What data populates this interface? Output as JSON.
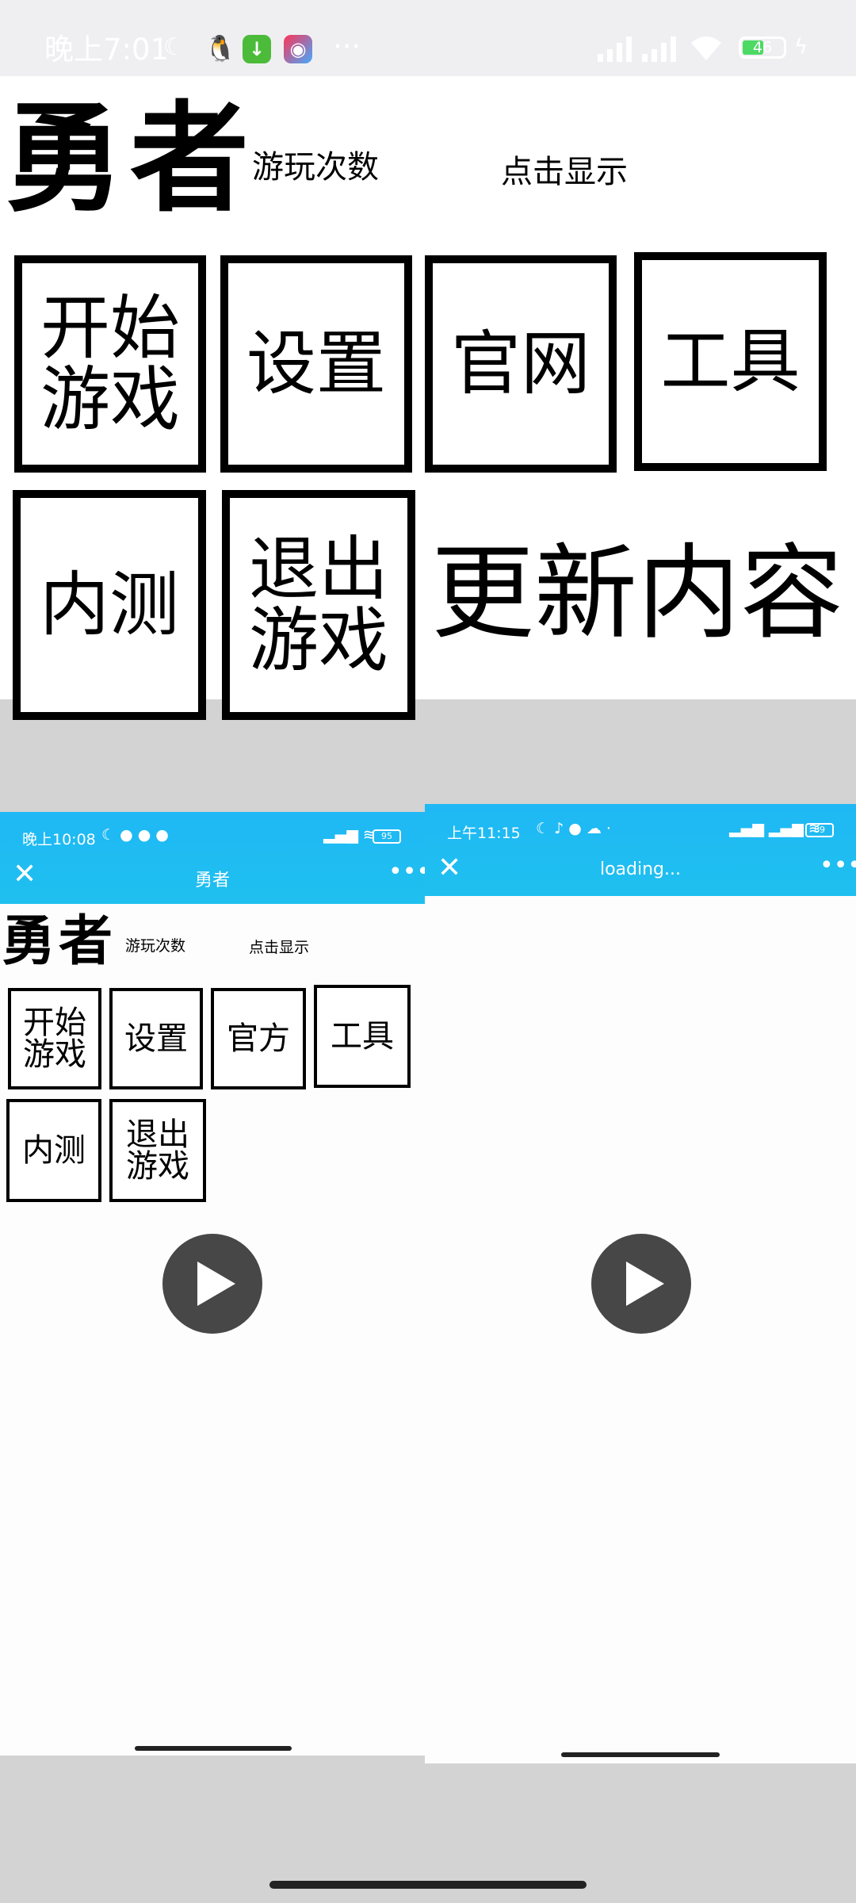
{
  "status_bar": {
    "time": "晚上7:01",
    "battery": "46",
    "more": "···"
  },
  "main": {
    "title": "勇者",
    "play_count_label": "游玩次数",
    "click_show_label": "点击显示",
    "buttons": [
      {
        "line1": "开始",
        "line2": "游戏"
      },
      {
        "line1": "设置"
      },
      {
        "line1": "官网"
      },
      {
        "line1": "工具"
      },
      {
        "line1": "内测"
      },
      {
        "line1": "退出",
        "line2": "游戏"
      }
    ],
    "update_label": "更新内容"
  },
  "left_phone": {
    "status_time": "晚上10:08",
    "battery": "95",
    "nav_title": "勇者",
    "title": "勇者",
    "play_count_label": "游玩次数",
    "click_show_label": "点击显示",
    "buttons": [
      {
        "line1": "开始",
        "line2": "游戏"
      },
      {
        "line1": "设置"
      },
      {
        "line1": "官方"
      },
      {
        "line1": "工具"
      },
      {
        "line1": "内测"
      },
      {
        "line1": "退出",
        "line2": "游戏"
      }
    ]
  },
  "right_phone": {
    "status_time": "上午11:15",
    "battery": "89",
    "nav_title": "loading..."
  },
  "colors": {
    "accent": "#1fb8f5",
    "dark_button": "#474747"
  }
}
